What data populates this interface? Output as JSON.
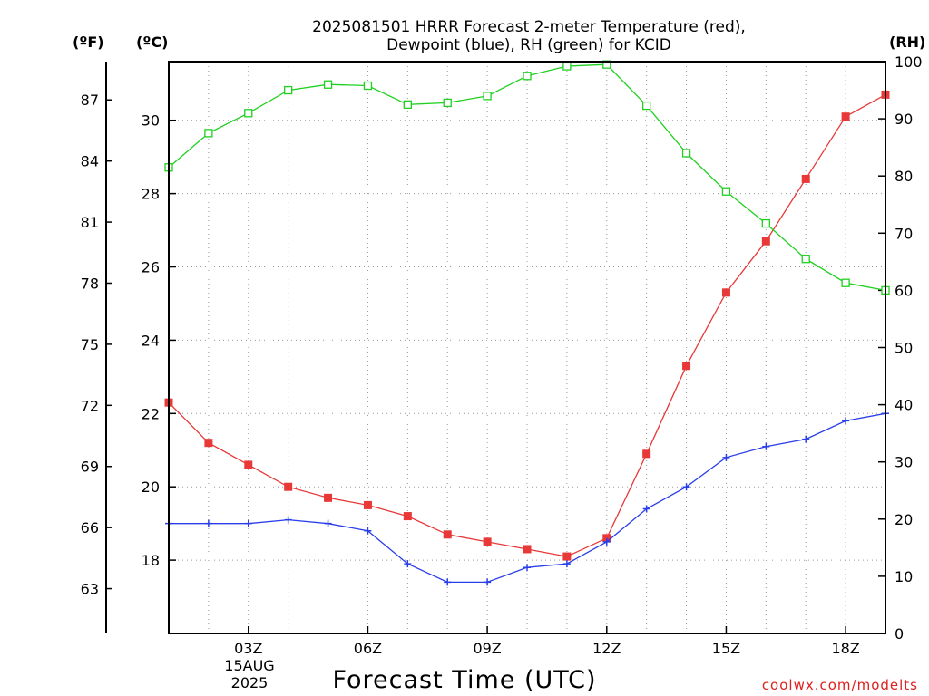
{
  "title_line1": "2025081501 HRRR Forecast 2-meter Temperature (red),",
  "title_line2": "Dewpoint (blue), RH (green) for KCID",
  "unit_f": "(ºF)",
  "unit_c": "(ºC)",
  "unit_rh": "(RH)",
  "x_axis_title": "Forecast Time (UTC)",
  "credit": "coolwx.com/modelts",
  "x_date_line1": "15AUG",
  "x_date_line2": "2025",
  "chart_data": {
    "type": "line",
    "x": [
      1,
      2,
      3,
      4,
      5,
      6,
      7,
      8,
      9,
      10,
      11,
      12,
      13,
      14,
      15,
      16,
      17,
      18,
      19
    ],
    "x_unit": "hour UTC, 15 AUG 2025",
    "xlim": [
      1,
      19
    ],
    "x_ticks": [
      3,
      6,
      9,
      12,
      15,
      18
    ],
    "x_tick_labels": [
      "03Z",
      "06Z",
      "09Z",
      "12Z",
      "15Z",
      "18Z"
    ],
    "celsius_ticks": [
      18,
      20,
      22,
      24,
      26,
      28,
      30
    ],
    "celsius_range": [
      16.0,
      31.6
    ],
    "fahrenheit_ticks": [
      63,
      66,
      69,
      72,
      75,
      78,
      81,
      84,
      87
    ],
    "rh_ticks": [
      0,
      10,
      20,
      30,
      40,
      50,
      60,
      70,
      80,
      90,
      100
    ],
    "rh_range": [
      0,
      100
    ],
    "grid": true,
    "series": [
      {
        "name": "Temperature",
        "axis": "celsius",
        "color": "#e83838",
        "marker": "filled-square",
        "values": [
          22.3,
          21.2,
          20.6,
          20.0,
          19.7,
          19.5,
          19.2,
          18.7,
          18.5,
          18.3,
          18.1,
          18.6,
          20.9,
          23.3,
          25.3,
          26.7,
          28.4,
          30.1,
          30.7
        ]
      },
      {
        "name": "Dewpoint",
        "axis": "celsius",
        "color": "#2a3ee8",
        "marker": "plus",
        "values": [
          19.0,
          19.0,
          19.0,
          19.1,
          19.0,
          18.8,
          17.9,
          17.4,
          17.4,
          17.8,
          17.9,
          18.5,
          19.4,
          20.0,
          20.8,
          21.1,
          21.3,
          21.8,
          22.0
        ]
      },
      {
        "name": "RH",
        "axis": "rh",
        "color": "#20d020",
        "marker": "open-square",
        "values": [
          81.5,
          87.5,
          91.0,
          95.0,
          96.0,
          95.8,
          92.5,
          92.8,
          94.0,
          97.5,
          99.2,
          99.5,
          92.3,
          84.0,
          77.3,
          71.7,
          65.5,
          61.3,
          60.0
        ]
      }
    ]
  }
}
